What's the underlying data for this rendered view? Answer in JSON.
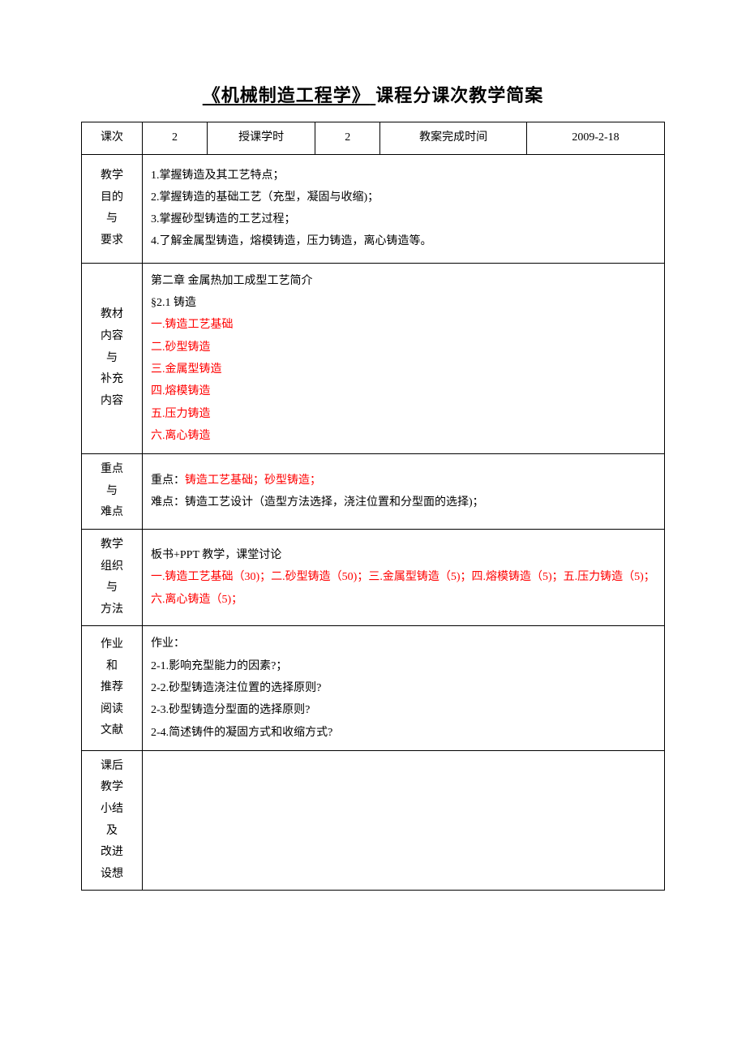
{
  "title": {
    "course_name": "《机械制造工程学》",
    "spacer": "    ",
    "suffix": "课程分课次教学简案"
  },
  "header": {
    "label_lesson": "课次",
    "value_lesson": "2",
    "label_hours": "授课学时",
    "value_hours": "2",
    "label_completion": "教案完成时间",
    "value_completion": "2009-2-18"
  },
  "sections": {
    "objectives": {
      "label_lines": [
        "教学",
        "目的",
        "与",
        "要求"
      ],
      "items": [
        "1.掌握铸造及其工艺特点；",
        "2.掌握铸造的基础工艺（充型，凝固与收缩)；",
        "3.掌握砂型铸造的工艺过程；",
        "4.了解金属型铸造，熔模铸造，压力铸造，离心铸造等。"
      ]
    },
    "materials": {
      "label_lines": [
        "教材",
        "内容",
        "与",
        "补充",
        "内容"
      ],
      "plain_items": [
        "第二章 金属热加工成型工艺简介",
        "§2.1 铸造"
      ],
      "red_items": [
        "一.铸造工艺基础",
        "二.砂型铸造",
        "三.金属型铸造",
        "四.熔模铸造",
        "五.压力铸造",
        "六.离心铸造"
      ]
    },
    "keypoints": {
      "label_lines": [
        "重点",
        "与",
        "难点"
      ],
      "line1_prefix": "重点：",
      "line1_red": "铸造工艺基础；砂型铸造；",
      "line2": "难点：铸造工艺设计（造型方法选择，浇注位置和分型面的选择)；"
    },
    "method": {
      "label_lines": [
        "教学",
        "组织",
        "与",
        "方法"
      ],
      "line1": "板书+PPT 教学，课堂讨论",
      "line2_red": "一.铸造工艺基础（30)；二.砂型铸造（50)；三.金属型铸造（5)；四.熔模铸造（5)；五.压力铸造（5)；六.离心铸造（5)；"
    },
    "homework": {
      "label_lines": [
        "作业",
        "和",
        "推荐",
        "阅读",
        "文献"
      ],
      "heading": " 作业：",
      "items": [
        "2-1.影响充型能力的因素?；",
        "2-2.砂型铸造浇注位置的选择原则?",
        "2-3.砂型铸造分型面的选择原则?",
        "2-4.简述铸件的凝固方式和收缩方式?"
      ]
    },
    "summary": {
      "label_lines": [
        "课后",
        "教学",
        "小结",
        "及",
        "改进",
        "设想"
      ]
    }
  },
  "colors": {
    "red": "#ff0000",
    "black": "#000000",
    "background": "#ffffff"
  }
}
